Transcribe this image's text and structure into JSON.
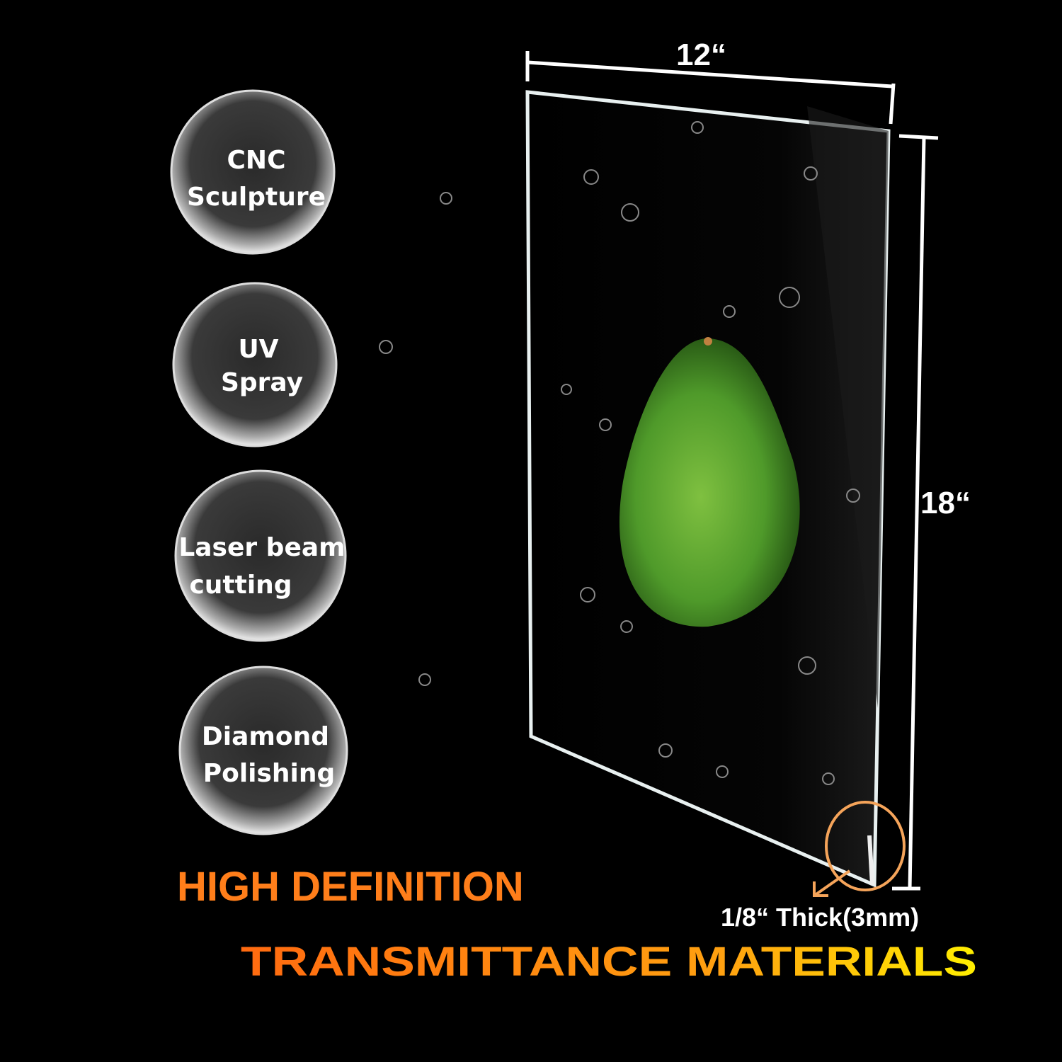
{
  "features": [
    {
      "line1": "CNC",
      "line2": "Sculpture"
    },
    {
      "line1": "UV",
      "line2": "Spray"
    },
    {
      "line1": "Laser beam",
      "line2": "cutting"
    },
    {
      "line1": "Diamond",
      "line2": "Polishing"
    }
  ],
  "dimensions": {
    "width": "12“",
    "height": "18“",
    "thickness": "1/8“ Thick(3mm)"
  },
  "headline": {
    "line1": "HIGH DEFINITION",
    "line2": "TRANSMITTANCE MATERIALS"
  },
  "colors": {
    "headline_orange": "#ff7a1a",
    "headline_yellow": "#ffee00",
    "annotation_circle": "#f5a45a",
    "avocado_green": "#4f9a2a"
  }
}
